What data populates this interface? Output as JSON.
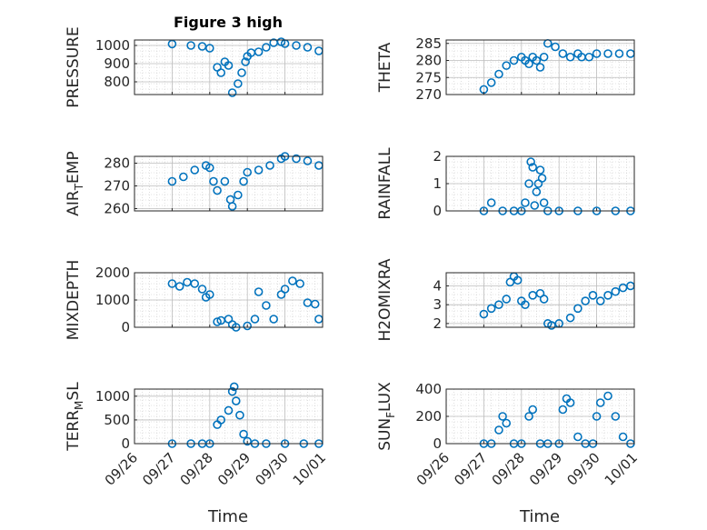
{
  "title": "Figure 3 high",
  "x_label": "Time",
  "x_ticks": [
    "09/26",
    "09/27",
    "09/28",
    "09/29",
    "09/30",
    "10/01"
  ],
  "marker_color": "#0072BD",
  "chart_data": [
    {
      "type": "scatter",
      "ylabel": "PRESSURE",
      "ylim": [
        730,
        1030
      ],
      "yticks": [
        800,
        900,
        1000
      ],
      "x": [
        1.0,
        1.5,
        1.8,
        2.0,
        2.2,
        2.3,
        2.4,
        2.5,
        2.6,
        2.75,
        2.85,
        2.95,
        3.0,
        3.1,
        3.3,
        3.5,
        3.7,
        3.9,
        4.0,
        4.3,
        4.6,
        4.9
      ],
      "y": [
        1008,
        1000,
        995,
        985,
        880,
        850,
        910,
        890,
        740,
        790,
        850,
        910,
        940,
        960,
        965,
        990,
        1015,
        1020,
        1010,
        1000,
        990,
        970
      ]
    },
    {
      "type": "scatter",
      "ylabel": "THETA",
      "ylim": [
        270,
        286
      ],
      "yticks": [
        270,
        275,
        280,
        285
      ],
      "x": [
        1.0,
        1.2,
        1.4,
        1.6,
        1.8,
        2.0,
        2.1,
        2.2,
        2.3,
        2.4,
        2.5,
        2.6,
        2.7,
        2.9,
        3.1,
        3.3,
        3.5,
        3.6,
        3.8,
        4.0,
        4.3,
        4.6,
        4.9
      ],
      "y": [
        271.5,
        273.5,
        276,
        278.5,
        280,
        281,
        280,
        279,
        281,
        280,
        278,
        281,
        285,
        284,
        282,
        281,
        282,
        281,
        281,
        282,
        282,
        282,
        282
      ]
    },
    {
      "type": "scatter",
      "ylabel": "AIR_TEMP",
      "ylim": [
        259,
        283
      ],
      "yticks": [
        260,
        270,
        280
      ],
      "x": [
        1.0,
        1.3,
        1.6,
        1.9,
        2.0,
        2.1,
        2.2,
        2.4,
        2.55,
        2.6,
        2.75,
        2.9,
        3.0,
        3.3,
        3.6,
        3.9,
        4.0,
        4.3,
        4.6,
        4.9
      ],
      "y": [
        272,
        274,
        277,
        279,
        278,
        272,
        268,
        272,
        264,
        261,
        266,
        272,
        276,
        277,
        279,
        282,
        283,
        282,
        281,
        279
      ]
    },
    {
      "type": "scatter",
      "ylabel": "RAINFALL",
      "ylim": [
        0,
        2
      ],
      "yticks": [
        0,
        1,
        2
      ],
      "x": [
        1.0,
        1.2,
        1.5,
        1.8,
        2.0,
        2.1,
        2.2,
        2.25,
        2.3,
        2.35,
        2.4,
        2.45,
        2.5,
        2.55,
        2.6,
        2.7,
        3.0,
        3.5,
        4.0,
        4.5,
        4.9
      ],
      "y": [
        0,
        0.3,
        0,
        0,
        0,
        0.3,
        1.0,
        1.8,
        1.6,
        0.2,
        0.7,
        1.0,
        1.5,
        1.2,
        0.3,
        0,
        0,
        0,
        0,
        0,
        0
      ]
    },
    {
      "type": "scatter",
      "ylabel": "MIXDEPTH",
      "ylim": [
        0,
        2000
      ],
      "yticks": [
        0,
        1000,
        2000
      ],
      "x": [
        1.0,
        1.2,
        1.4,
        1.6,
        1.8,
        1.9,
        2.0,
        2.2,
        2.3,
        2.5,
        2.6,
        2.7,
        3.0,
        3.2,
        3.3,
        3.5,
        3.7,
        3.9,
        4.0,
        4.2,
        4.4,
        4.6,
        4.8,
        4.9
      ],
      "y": [
        1600,
        1500,
        1650,
        1600,
        1400,
        1100,
        1200,
        200,
        250,
        300,
        100,
        0,
        50,
        300,
        1300,
        800,
        300,
        1200,
        1400,
        1700,
        1600,
        900,
        850,
        300
      ]
    },
    {
      "type": "scatter",
      "ylabel": "H2OMIXRA",
      "ylim": [
        1.8,
        4.7
      ],
      "yticks": [
        2,
        3,
        4
      ],
      "x": [
        1.0,
        1.2,
        1.4,
        1.6,
        1.7,
        1.8,
        1.9,
        2.0,
        2.1,
        2.3,
        2.5,
        2.6,
        2.7,
        2.8,
        3.0,
        3.3,
        3.5,
        3.7,
        3.9,
        4.1,
        4.3,
        4.5,
        4.7,
        4.9
      ],
      "y": [
        2.5,
        2.8,
        3.0,
        3.3,
        4.2,
        4.5,
        4.3,
        3.2,
        3.0,
        3.5,
        3.6,
        3.3,
        2.0,
        1.9,
        2.0,
        2.3,
        2.8,
        3.2,
        3.5,
        3.2,
        3.5,
        3.7,
        3.9,
        4.0
      ]
    },
    {
      "type": "scatter",
      "ylabel": "TERR_MSL",
      "ylim": [
        0,
        1150
      ],
      "yticks": [
        0,
        500,
        1000
      ],
      "x": [
        1.0,
        1.5,
        1.8,
        2.0,
        2.2,
        2.3,
        2.5,
        2.6,
        2.65,
        2.7,
        2.8,
        2.9,
        3.0,
        3.2,
        3.5,
        4.0,
        4.5,
        4.9
      ],
      "y": [
        0,
        0,
        0,
        0,
        400,
        500,
        700,
        1100,
        1200,
        900,
        600,
        200,
        50,
        0,
        0,
        0,
        0,
        0
      ]
    },
    {
      "type": "scatter",
      "ylabel": "SUN_FLUX",
      "ylim": [
        0,
        400
      ],
      "yticks": [
        0,
        200,
        400
      ],
      "x": [
        1.0,
        1.2,
        1.4,
        1.5,
        1.6,
        1.8,
        2.0,
        2.2,
        2.3,
        2.5,
        2.7,
        3.0,
        3.1,
        3.2,
        3.3,
        3.5,
        3.7,
        3.9,
        4.0,
        4.1,
        4.3,
        4.5,
        4.7,
        4.9
      ],
      "y": [
        0,
        0,
        100,
        200,
        150,
        0,
        0,
        200,
        250,
        0,
        0,
        0,
        250,
        330,
        300,
        50,
        0,
        0,
        200,
        300,
        350,
        200,
        50,
        0
      ]
    }
  ]
}
